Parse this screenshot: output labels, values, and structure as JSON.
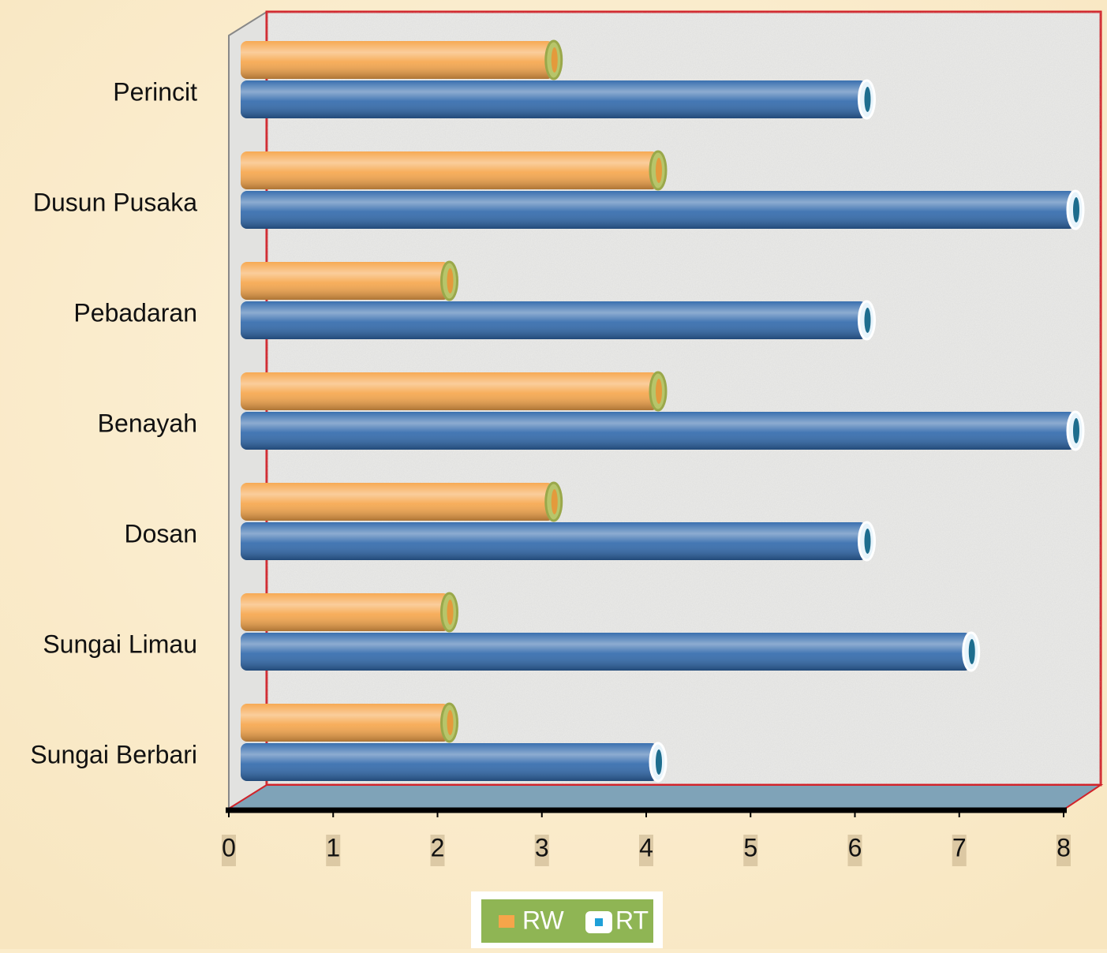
{
  "chart_data": {
    "type": "bar",
    "orientation": "horizontal",
    "categories": [
      "Perincit",
      "Dusun Pusaka",
      "Pebadaran",
      "Benayah",
      "Dosan",
      "Sungai Limau",
      "Sungai Berbari"
    ],
    "series": [
      {
        "name": "RW",
        "color": "#f6a54a",
        "values": [
          3,
          4,
          2,
          4,
          3,
          2,
          2
        ]
      },
      {
        "name": "RT",
        "color": "#2f68ab",
        "values": [
          6,
          8,
          6,
          8,
          6,
          7,
          4
        ]
      }
    ],
    "xlim": [
      0,
      8
    ],
    "xticks": [
      0,
      1,
      2,
      3,
      4,
      5,
      6,
      7,
      8
    ],
    "legend": "bottom"
  }
}
